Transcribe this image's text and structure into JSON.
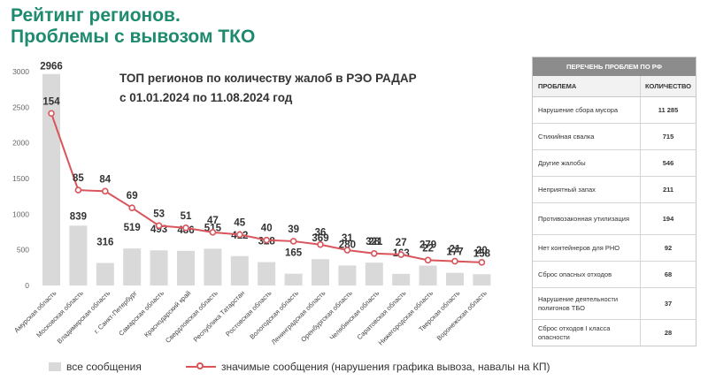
{
  "title_line1": "Рейтинг регионов.",
  "title_line2": "Проблемы с вывозом ТКО",
  "subtitle_line1": "ТОП регионов по количеству жалоб в РЭО РАДАР",
  "subtitle_line2": "с 01.01.2024 по 11.08.2024 год",
  "colors": {
    "accent": "#1e8a6e",
    "bar": "#d9d9d9",
    "line": "#d9545b"
  },
  "chart_data": {
    "type": "bar",
    "categories": [
      "Амурская область",
      "Московская область",
      "Владимирская область",
      "г. Санкт-Петербург",
      "Самарская область",
      "Краснодарский край",
      "Свердловская область",
      "Республика Татарстан",
      "Ростовская область",
      "Вологодская область",
      "Ленинградская область",
      "Оренбургская область",
      "Челябинская область",
      "Саратовская область",
      "Нижегородская область",
      "Тверская область",
      "Воронежская область"
    ],
    "series": [
      {
        "name": "все сообщения",
        "kind": "bar",
        "values": [
          2966,
          839,
          316,
          519,
          493,
          486,
          515,
          412,
          328,
          165,
          369,
          280,
          321,
          163,
          279,
          177,
          158
        ]
      },
      {
        "name": "значимые сообщения (нарушения графика вывоза, навалы на КП)",
        "kind": "line",
        "values": [
          154,
          85,
          84,
          69,
          53,
          51,
          47,
          45,
          40,
          39,
          36,
          31,
          28,
          27,
          22,
          21,
          20
        ]
      }
    ],
    "ylim": [
      0,
      3000
    ],
    "yticks": [
      0,
      500,
      1000,
      1500,
      2000,
      2500,
      3000
    ]
  },
  "legend": {
    "bar_label": "все сообщения",
    "line_label": "значимые сообщения (нарушения графика вывоза, навалы на КП)"
  },
  "table": {
    "header": "ПЕРЕЧЕНЬ ПРОБЛЕМ ПО РФ",
    "col1": "ПРОБЛЕМА",
    "col2": "КОЛИЧЕСТВО",
    "rows": [
      {
        "problem": "Нарушение сбора мусора",
        "count": "11 285"
      },
      {
        "problem": "Стихийная свалка",
        "count": "715"
      },
      {
        "problem": "Другие жалобы",
        "count": "546"
      },
      {
        "problem": "Неприятный запах",
        "count": "211"
      },
      {
        "problem": "Противозаконная утилизация",
        "count": "194"
      },
      {
        "problem": "Нет контейнеров для РНО",
        "count": "92"
      },
      {
        "problem": "Сброс опасных отходов",
        "count": "68"
      },
      {
        "problem": "Нарушение деятельности полигонов ТБО",
        "count": "37"
      },
      {
        "problem": "Сброс отходов I класса опасности",
        "count": "28"
      }
    ]
  }
}
